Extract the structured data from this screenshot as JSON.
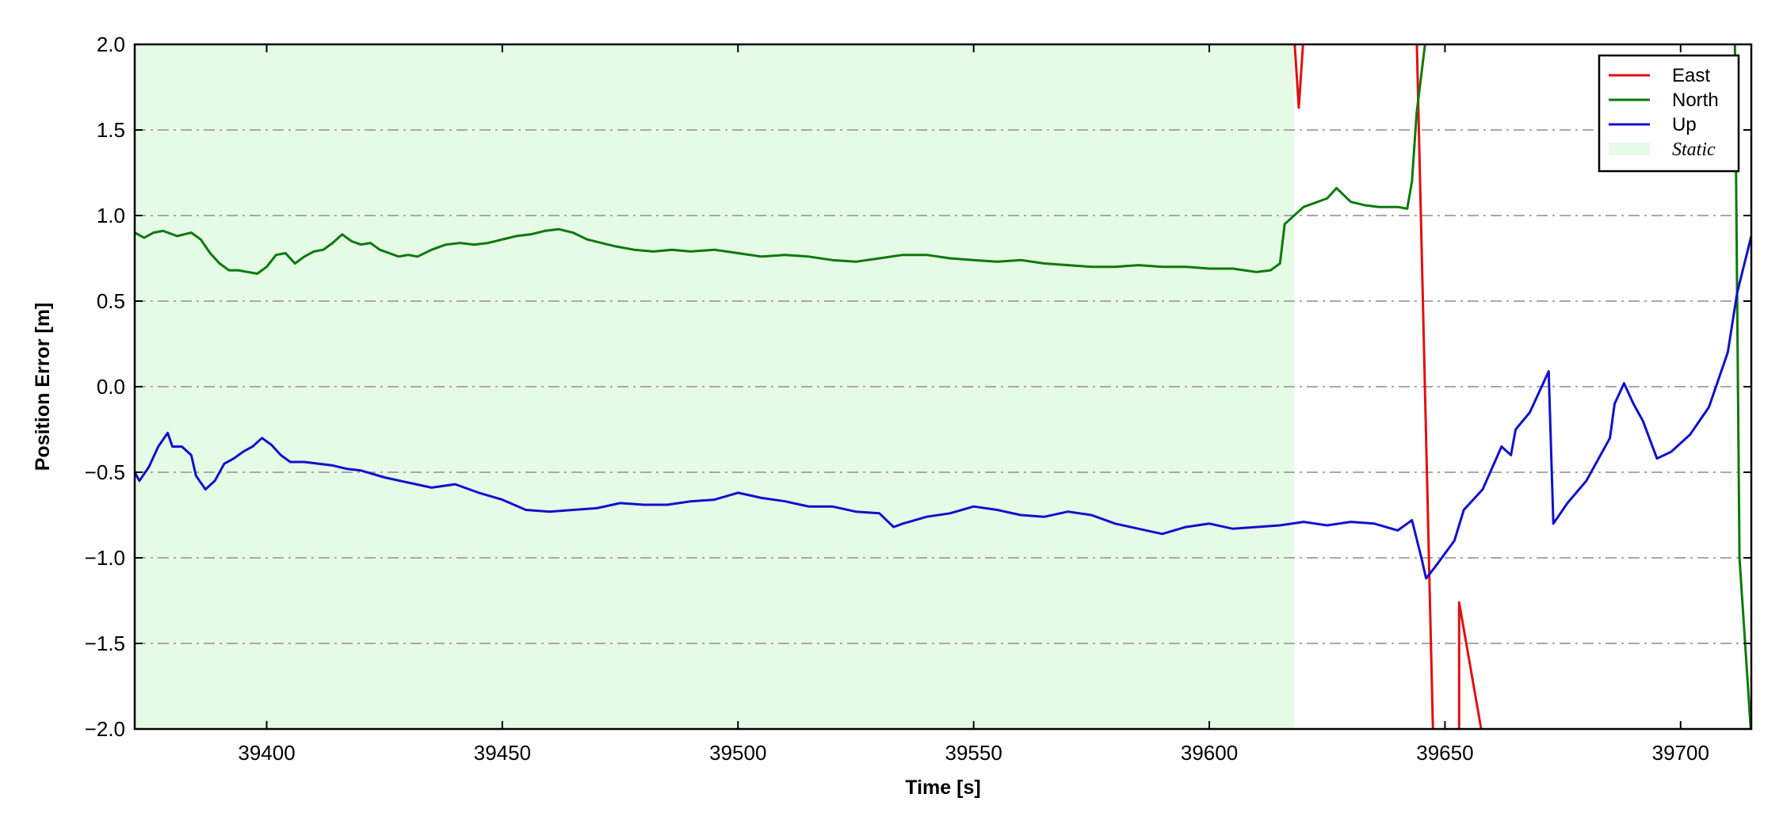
{
  "chart_data": {
    "type": "line",
    "xlabel": "Time [s]",
    "ylabel": "Position Error [m]",
    "xlim": [
      39372,
      39715
    ],
    "ylim": [
      -2.0,
      2.0
    ],
    "x_ticks": [
      39400,
      39450,
      39500,
      39550,
      39600,
      39650,
      39700
    ],
    "x_tick_labels": [
      "39400",
      "39450",
      "39500",
      "39550",
      "39600",
      "39650",
      "39700"
    ],
    "y_ticks": [
      2.0,
      1.5,
      1.0,
      0.5,
      0.0,
      -0.5,
      -1.0,
      -1.5,
      -2.0
    ],
    "y_tick_labels": [
      "2.0",
      "1.5",
      "1.0",
      "0.5",
      "0.0",
      "−0.5",
      "−1.0",
      "−1.5",
      "−2.0"
    ],
    "grid": "horizontal dash-dot",
    "legend_position": "top-right",
    "shaded_region": {
      "label": "Static",
      "x_start": 39372,
      "x_end": 39618,
      "color": "#e6fbe6"
    },
    "series": [
      {
        "name": "East",
        "color": "#e01010",
        "x": [
          39618.0,
          39619.0,
          39620.0,
          39644.0,
          39647.5,
          39653.0,
          39653.0,
          39658.0
        ],
        "y": [
          2.05,
          1.63,
          2.05,
          2.05,
          -2.05,
          -2.05,
          -1.26,
          -2.05
        ]
      },
      {
        "name": "North",
        "color": "#0a7a0a",
        "x": [
          39372,
          39374,
          39376,
          39378,
          39381,
          39384,
          39386,
          39388,
          39390,
          39392,
          39394,
          39396,
          39398,
          39400,
          39402,
          39404,
          39406,
          39408,
          39410,
          39412,
          39414,
          39416,
          39418,
          39420,
          39422,
          39424,
          39426,
          39428,
          39430,
          39432,
          39435,
          39438,
          39441,
          39444,
          39447,
          39450,
          39453,
          39456,
          39459,
          39462,
          39465,
          39468,
          39471,
          39474,
          39478,
          39482,
          39486,
          39490,
          39495,
          39500,
          39505,
          39510,
          39515,
          39520,
          39525,
          39530,
          39535,
          39540,
          39545,
          39550,
          39555,
          39560,
          39565,
          39570,
          39575,
          39580,
          39585,
          39590,
          39595,
          39600,
          39605,
          39610,
          39613,
          39615,
          39616,
          39620,
          39625,
          39627,
          39630,
          39633,
          39636,
          39640,
          39642,
          39643,
          39644,
          39646
        ],
        "y": [
          0.9,
          0.87,
          0.9,
          0.91,
          0.88,
          0.9,
          0.86,
          0.78,
          0.72,
          0.68,
          0.68,
          0.67,
          0.66,
          0.7,
          0.77,
          0.78,
          0.72,
          0.76,
          0.79,
          0.8,
          0.84,
          0.89,
          0.85,
          0.83,
          0.84,
          0.8,
          0.78,
          0.76,
          0.77,
          0.76,
          0.8,
          0.83,
          0.84,
          0.83,
          0.84,
          0.86,
          0.88,
          0.89,
          0.91,
          0.92,
          0.9,
          0.86,
          0.84,
          0.82,
          0.8,
          0.79,
          0.8,
          0.79,
          0.8,
          0.78,
          0.76,
          0.77,
          0.76,
          0.74,
          0.73,
          0.75,
          0.77,
          0.77,
          0.75,
          0.74,
          0.73,
          0.74,
          0.72,
          0.71,
          0.7,
          0.7,
          0.71,
          0.7,
          0.7,
          0.69,
          0.69,
          0.67,
          0.68,
          0.72,
          0.95,
          1.05,
          1.1,
          1.16,
          1.08,
          1.06,
          1.05,
          1.05,
          1.04,
          1.2,
          1.6,
          2.05
        ]
      },
      {
        "name": "North",
        "color": "#0a7a0a",
        "x": [
          39711.5,
          39712.5,
          39715.0
        ],
        "y": [
          2.05,
          -1.0,
          -2.05
        ]
      },
      {
        "name": "Up",
        "color": "#1010cc",
        "x": [
          39372,
          39373,
          39375,
          39377,
          39379,
          39380,
          39382,
          39384,
          39385,
          39387,
          39389,
          39391,
          39393,
          39395,
          39397,
          39399,
          39401,
          39403,
          39405,
          39408,
          39411,
          39414,
          39417,
          39420,
          39425,
          39430,
          39435,
          39440,
          39445,
          39450,
          39455,
          39460,
          39465,
          39470,
          39475,
          39480,
          39485,
          39490,
          39495,
          39500,
          39505,
          39510,
          39515,
          39520,
          39525,
          39530,
          39533,
          39535,
          39540,
          39545,
          39550,
          39555,
          39560,
          39565,
          39570,
          39575,
          39580,
          39585,
          39590,
          39595,
          39600,
          39605,
          39610,
          39615,
          39620,
          39625,
          39630,
          39635,
          39640,
          39643,
          39645,
          39646,
          39648,
          39652,
          39654,
          39658,
          39662,
          39664,
          39665,
          39668,
          39672,
          39673,
          39676,
          39680,
          39685,
          39686,
          39688,
          39690,
          39692,
          39695,
          39698,
          39702,
          39706,
          39710,
          39712,
          39715
        ],
        "y": [
          -0.5,
          -0.55,
          -0.47,
          -0.35,
          -0.27,
          -0.35,
          -0.35,
          -0.4,
          -0.52,
          -0.6,
          -0.55,
          -0.45,
          -0.42,
          -0.38,
          -0.35,
          -0.3,
          -0.34,
          -0.4,
          -0.44,
          -0.44,
          -0.45,
          -0.46,
          -0.48,
          -0.49,
          -0.53,
          -0.56,
          -0.59,
          -0.57,
          -0.62,
          -0.66,
          -0.72,
          -0.73,
          -0.72,
          -0.71,
          -0.68,
          -0.69,
          -0.69,
          -0.67,
          -0.66,
          -0.62,
          -0.65,
          -0.67,
          -0.7,
          -0.7,
          -0.73,
          -0.74,
          -0.82,
          -0.8,
          -0.76,
          -0.74,
          -0.7,
          -0.72,
          -0.75,
          -0.76,
          -0.73,
          -0.75,
          -0.8,
          -0.83,
          -0.86,
          -0.82,
          -0.8,
          -0.83,
          -0.82,
          -0.81,
          -0.79,
          -0.81,
          -0.79,
          -0.8,
          -0.84,
          -0.78,
          -1.0,
          -1.12,
          -1.05,
          -0.9,
          -0.72,
          -0.6,
          -0.35,
          -0.4,
          -0.25,
          -0.15,
          0.09,
          -0.8,
          -0.68,
          -0.55,
          -0.3,
          -0.1,
          0.02,
          -0.1,
          -0.2,
          -0.42,
          -0.38,
          -0.28,
          -0.12,
          0.2,
          0.55,
          0.88
        ]
      }
    ],
    "legend": [
      {
        "label": "East",
        "color": "#e01010",
        "kind": "line"
      },
      {
        "label": "North",
        "color": "#0a7a0a",
        "kind": "line"
      },
      {
        "label": "Up",
        "color": "#1010cc",
        "kind": "line"
      },
      {
        "label": "Static",
        "color": "#e6fbe6",
        "kind": "patch"
      }
    ]
  }
}
